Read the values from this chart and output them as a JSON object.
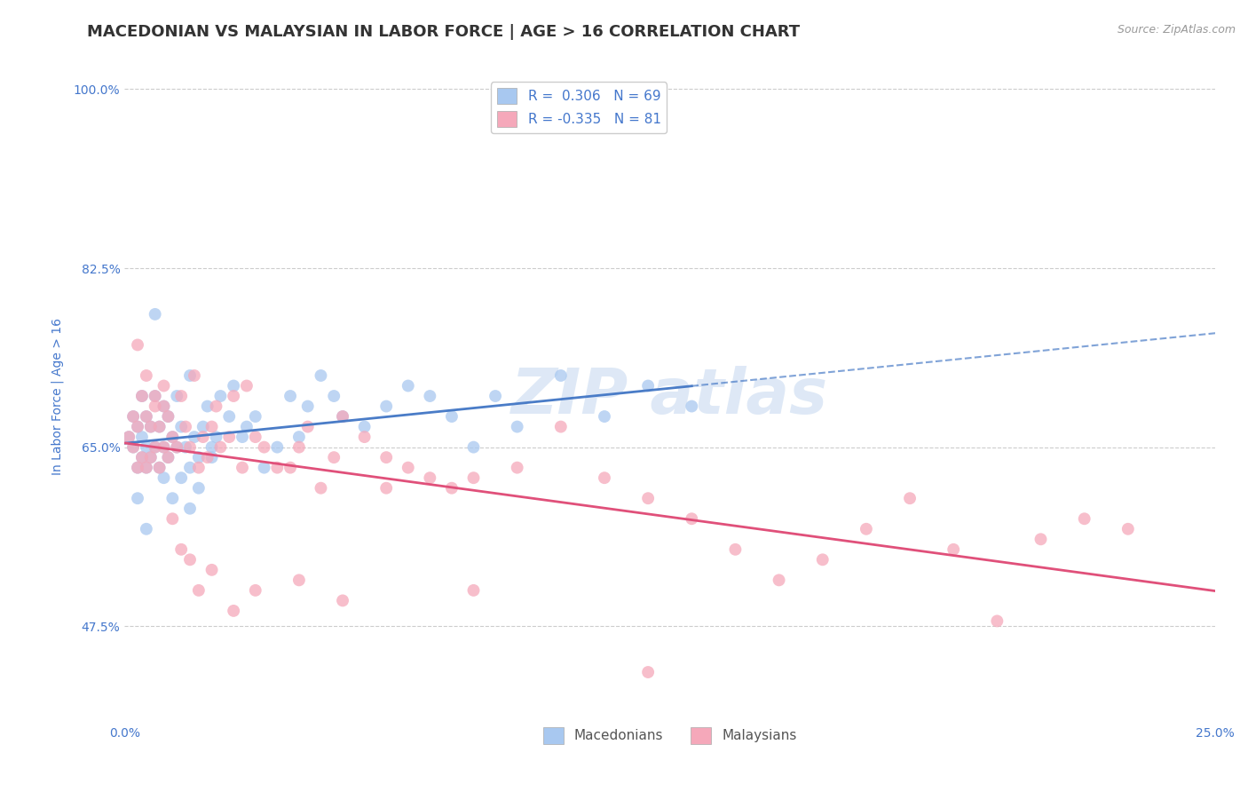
{
  "title": "MACEDONIAN VS MALAYSIAN IN LABOR FORCE | AGE > 16 CORRELATION CHART",
  "source_text": "Source: ZipAtlas.com",
  "ylabel": "In Labor Force | Age > 16",
  "xlim": [
    0.0,
    0.25
  ],
  "ylim": [
    0.38,
    1.02
  ],
  "ytick_labels_show": [
    0.475,
    0.65,
    0.825,
    1.0
  ],
  "xtick_labels_show": [
    0.0,
    0.25
  ],
  "grid_color": "#cccccc",
  "background_color": "#ffffff",
  "macedonian_color": "#a8c8f0",
  "malaysian_color": "#f5a8ba",
  "macedonian_line_color": "#4a7cc7",
  "malaysian_line_color": "#e0507a",
  "R_macedonian": 0.306,
  "N_macedonian": 69,
  "R_malaysian": -0.335,
  "N_malaysian": 81,
  "macedonian_x": [
    0.001,
    0.002,
    0.002,
    0.003,
    0.003,
    0.004,
    0.004,
    0.004,
    0.005,
    0.005,
    0.005,
    0.006,
    0.006,
    0.007,
    0.007,
    0.008,
    0.008,
    0.009,
    0.009,
    0.01,
    0.01,
    0.011,
    0.012,
    0.012,
    0.013,
    0.014,
    0.015,
    0.015,
    0.016,
    0.017,
    0.018,
    0.019,
    0.02,
    0.021,
    0.022,
    0.024,
    0.025,
    0.027,
    0.028,
    0.03,
    0.032,
    0.035,
    0.038,
    0.04,
    0.042,
    0.045,
    0.048,
    0.05,
    0.055,
    0.06,
    0.065,
    0.07,
    0.075,
    0.08,
    0.085,
    0.09,
    0.1,
    0.11,
    0.12,
    0.13,
    0.003,
    0.005,
    0.007,
    0.009,
    0.011,
    0.013,
    0.015,
    0.017,
    0.02
  ],
  "macedonian_y": [
    0.66,
    0.65,
    0.68,
    0.63,
    0.67,
    0.64,
    0.66,
    0.7,
    0.63,
    0.65,
    0.68,
    0.64,
    0.67,
    0.65,
    0.7,
    0.63,
    0.67,
    0.65,
    0.69,
    0.64,
    0.68,
    0.66,
    0.65,
    0.7,
    0.67,
    0.65,
    0.72,
    0.63,
    0.66,
    0.64,
    0.67,
    0.69,
    0.65,
    0.66,
    0.7,
    0.68,
    0.71,
    0.66,
    0.67,
    0.68,
    0.63,
    0.65,
    0.7,
    0.66,
    0.69,
    0.72,
    0.7,
    0.68,
    0.67,
    0.69,
    0.71,
    0.7,
    0.68,
    0.65,
    0.7,
    0.67,
    0.72,
    0.68,
    0.71,
    0.69,
    0.6,
    0.57,
    0.78,
    0.62,
    0.6,
    0.62,
    0.59,
    0.61,
    0.64
  ],
  "malaysian_x": [
    0.001,
    0.002,
    0.002,
    0.003,
    0.003,
    0.004,
    0.004,
    0.005,
    0.005,
    0.006,
    0.006,
    0.007,
    0.007,
    0.008,
    0.008,
    0.009,
    0.009,
    0.01,
    0.01,
    0.011,
    0.012,
    0.013,
    0.014,
    0.015,
    0.016,
    0.017,
    0.018,
    0.019,
    0.02,
    0.021,
    0.022,
    0.024,
    0.025,
    0.027,
    0.028,
    0.03,
    0.032,
    0.035,
    0.038,
    0.04,
    0.042,
    0.045,
    0.048,
    0.05,
    0.055,
    0.06,
    0.065,
    0.07,
    0.075,
    0.08,
    0.09,
    0.1,
    0.11,
    0.12,
    0.13,
    0.14,
    0.15,
    0.16,
    0.17,
    0.18,
    0.19,
    0.2,
    0.21,
    0.22,
    0.23,
    0.003,
    0.005,
    0.007,
    0.009,
    0.011,
    0.013,
    0.015,
    0.017,
    0.02,
    0.025,
    0.03,
    0.04,
    0.05,
    0.06,
    0.08,
    0.12
  ],
  "malaysian_y": [
    0.66,
    0.65,
    0.68,
    0.63,
    0.67,
    0.64,
    0.7,
    0.63,
    0.68,
    0.64,
    0.67,
    0.65,
    0.7,
    0.63,
    0.67,
    0.65,
    0.69,
    0.64,
    0.68,
    0.66,
    0.65,
    0.7,
    0.67,
    0.65,
    0.72,
    0.63,
    0.66,
    0.64,
    0.67,
    0.69,
    0.65,
    0.66,
    0.7,
    0.63,
    0.71,
    0.66,
    0.65,
    0.63,
    0.63,
    0.65,
    0.67,
    0.61,
    0.64,
    0.68,
    0.66,
    0.64,
    0.63,
    0.62,
    0.61,
    0.62,
    0.63,
    0.67,
    0.62,
    0.6,
    0.58,
    0.55,
    0.52,
    0.54,
    0.57,
    0.6,
    0.55,
    0.48,
    0.56,
    0.58,
    0.57,
    0.75,
    0.72,
    0.69,
    0.71,
    0.58,
    0.55,
    0.54,
    0.51,
    0.53,
    0.49,
    0.51,
    0.52,
    0.5,
    0.61,
    0.51,
    0.43
  ],
  "watermark_color": "#c8daf0",
  "axis_label_color": "#4477cc",
  "tick_color": "#4477cc",
  "title_color": "#333333",
  "title_fontsize": 13,
  "ylabel_fontsize": 10,
  "tick_fontsize": 10,
  "legend_fontsize": 11
}
